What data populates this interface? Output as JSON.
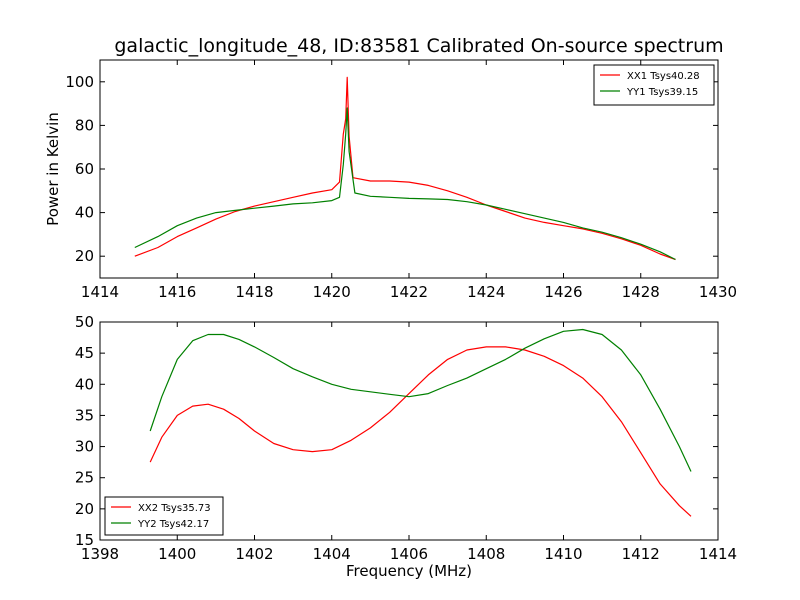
{
  "chart_data": [
    {
      "type": "line",
      "title": "galactic_longitude_48, ID:83581 Calibrated On-source spectrum",
      "xlabel": "",
      "ylabel": "Power in Kelvin",
      "xlim": [
        1414,
        1430
      ],
      "ylim": [
        10,
        110
      ],
      "xticks": [
        1414,
        1416,
        1418,
        1420,
        1422,
        1424,
        1426,
        1428,
        1430
      ],
      "yticks": [
        20,
        40,
        60,
        80,
        100
      ],
      "grid": false,
      "legend_position": "upper right",
      "series": [
        {
          "name": "XX1 Tsys40.28",
          "color": "#ff0000",
          "x": [
            1414.9,
            1415.5,
            1416.0,
            1416.5,
            1417.0,
            1417.5,
            1418.0,
            1418.5,
            1419.0,
            1419.5,
            1420.0,
            1420.2,
            1420.3,
            1420.36,
            1420.4,
            1420.45,
            1420.55,
            1421.0,
            1421.5,
            1422.0,
            1422.5,
            1423.0,
            1423.5,
            1424.0,
            1424.5,
            1425.0,
            1425.5,
            1426.0,
            1426.5,
            1427.0,
            1427.5,
            1428.0,
            1428.5,
            1428.9
          ],
          "y": [
            20,
            24,
            29,
            33,
            37,
            40.5,
            43,
            45,
            47,
            49,
            50.5,
            54,
            76,
            83,
            102,
            75,
            56,
            54.5,
            54.5,
            54,
            52.5,
            50,
            47,
            43.5,
            40.5,
            37.5,
            35.5,
            34,
            32.5,
            30.5,
            28,
            25,
            21,
            18.5
          ]
        },
        {
          "name": "YY1 Tsys39.15",
          "color": "#008000",
          "x": [
            1414.9,
            1415.5,
            1416.0,
            1416.5,
            1417.0,
            1417.5,
            1418.0,
            1418.5,
            1419.0,
            1419.5,
            1420.0,
            1420.2,
            1420.3,
            1420.36,
            1420.4,
            1420.45,
            1420.6,
            1421.0,
            1421.5,
            1422.0,
            1422.5,
            1423.0,
            1423.5,
            1424.0,
            1424.5,
            1425.0,
            1425.5,
            1426.0,
            1426.5,
            1427.0,
            1427.5,
            1428.0,
            1428.5,
            1428.9
          ],
          "y": [
            24,
            29,
            34,
            37.5,
            40,
            41,
            42,
            43,
            44,
            44.5,
            45.5,
            47,
            62,
            76,
            88,
            68,
            49,
            47.5,
            47,
            46.5,
            46.3,
            46,
            45,
            43.5,
            41.5,
            39.5,
            37.5,
            35.5,
            33,
            31,
            28.5,
            25.5,
            22,
            18.5
          ]
        }
      ]
    },
    {
      "type": "line",
      "title": "",
      "xlabel": "Frequency (MHz)",
      "ylabel": "",
      "xlim": [
        1398,
        1414
      ],
      "ylim": [
        15,
        50
      ],
      "xticks": [
        1398,
        1400,
        1402,
        1404,
        1406,
        1408,
        1410,
        1412,
        1414
      ],
      "yticks": [
        15,
        20,
        25,
        30,
        35,
        40,
        45,
        50
      ],
      "grid": false,
      "legend_position": "lower left",
      "series": [
        {
          "name": "XX2 Tsys35.73",
          "color": "#ff0000",
          "x": [
            1399.3,
            1399.6,
            1400.0,
            1400.4,
            1400.8,
            1401.2,
            1401.6,
            1402.0,
            1402.5,
            1403.0,
            1403.5,
            1404.0,
            1404.5,
            1405.0,
            1405.5,
            1406.0,
            1406.5,
            1407.0,
            1407.5,
            1408.0,
            1408.5,
            1409.0,
            1409.5,
            1410.0,
            1410.5,
            1411.0,
            1411.5,
            1412.0,
            1412.5,
            1413.0,
            1413.3
          ],
          "y": [
            27.5,
            31.5,
            35,
            36.5,
            36.8,
            36,
            34.5,
            32.5,
            30.5,
            29.5,
            29.2,
            29.5,
            31,
            33,
            35.5,
            38.5,
            41.5,
            44,
            45.5,
            46,
            46,
            45.5,
            44.5,
            43,
            41,
            38,
            34,
            29,
            24,
            20.5,
            18.8
          ]
        },
        {
          "name": "YY2 Tsys42.17",
          "color": "#008000",
          "x": [
            1399.3,
            1399.6,
            1400.0,
            1400.4,
            1400.8,
            1401.2,
            1401.6,
            1402.0,
            1402.5,
            1403.0,
            1403.5,
            1404.0,
            1404.5,
            1405.0,
            1405.5,
            1406.0,
            1406.5,
            1407.0,
            1407.5,
            1408.0,
            1408.5,
            1409.0,
            1409.5,
            1410.0,
            1410.5,
            1411.0,
            1411.5,
            1412.0,
            1412.5,
            1413.0,
            1413.3
          ],
          "y": [
            32.5,
            38,
            44,
            47,
            48,
            48,
            47.2,
            46,
            44.3,
            42.5,
            41.2,
            40,
            39.2,
            38.8,
            38.4,
            38,
            38.5,
            39.8,
            41,
            42.5,
            44,
            45.8,
            47.3,
            48.5,
            48.8,
            48,
            45.5,
            41.5,
            36,
            30,
            26
          ]
        }
      ]
    }
  ]
}
